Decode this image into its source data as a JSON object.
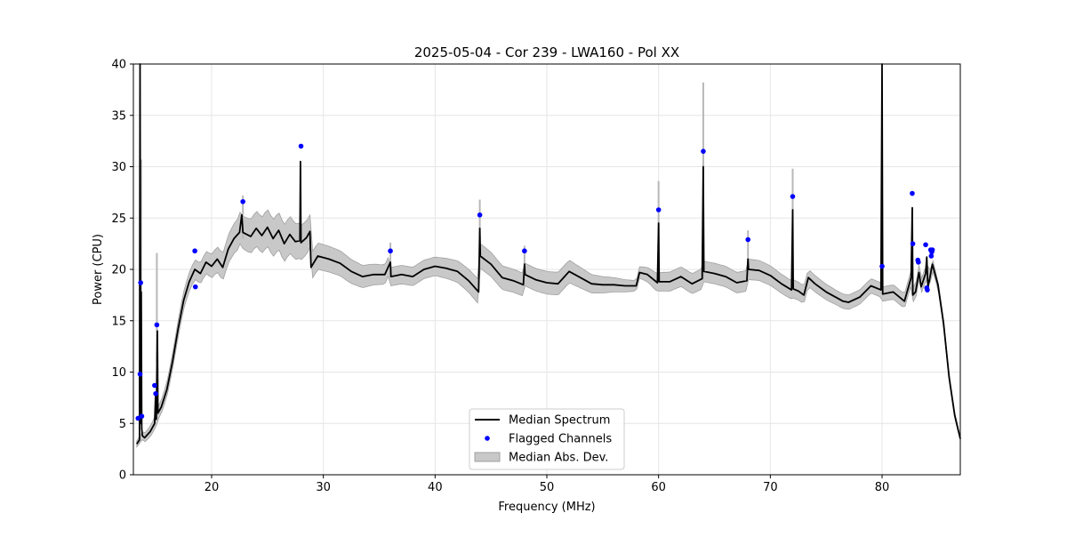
{
  "chart_data": {
    "type": "line",
    "title": "2025-05-04 - Cor 239 - LWA160 - Pol XX",
    "xlabel": "Frequency (MHz)",
    "ylabel": "Power (CPU)",
    "xlim": [
      13,
      87
    ],
    "ylim": [
      0,
      40
    ],
    "xticks": [
      20,
      30,
      40,
      50,
      60,
      70,
      80
    ],
    "yticks": [
      0,
      5,
      10,
      15,
      20,
      25,
      30,
      35,
      40
    ],
    "grid": true,
    "legend_position": "bottom-center",
    "colors": {
      "median": "#000000",
      "flagged": "#0000ff",
      "mad_fill": "#c8c8c8",
      "mad_edge": "#a0a0a0"
    },
    "series": [
      {
        "name": "Median Spectrum",
        "kind": "line",
        "points": [
          [
            13.3,
            3.0
          ],
          [
            13.55,
            3.4
          ],
          [
            13.6,
            40
          ],
          [
            13.65,
            5.0
          ],
          [
            13.7,
            17.8
          ],
          [
            13.75,
            4.5
          ],
          [
            13.8,
            3.8
          ],
          [
            14.0,
            3.6
          ],
          [
            14.5,
            4.2
          ],
          [
            14.9,
            5.0
          ],
          [
            15.0,
            8.0
          ],
          [
            15.05,
            5.4
          ],
          [
            15.15,
            14.0
          ],
          [
            15.2,
            6.0
          ],
          [
            15.5,
            6.6
          ],
          [
            16.0,
            8.3
          ],
          [
            16.5,
            11.0
          ],
          [
            17.0,
            14.2
          ],
          [
            17.5,
            17.0
          ],
          [
            18.0,
            18.8
          ],
          [
            18.5,
            20.0
          ],
          [
            19.0,
            19.6
          ],
          [
            19.5,
            20.7
          ],
          [
            20.0,
            20.3
          ],
          [
            20.5,
            21.0
          ],
          [
            21.0,
            20.2
          ],
          [
            21.5,
            22.0
          ],
          [
            22.0,
            23.0
          ],
          [
            22.5,
            23.6
          ],
          [
            22.7,
            25.3
          ],
          [
            22.8,
            23.6
          ],
          [
            23.5,
            23.2
          ],
          [
            24.0,
            24.0
          ],
          [
            24.5,
            23.3
          ],
          [
            25.0,
            24.1
          ],
          [
            25.5,
            23.0
          ],
          [
            26.0,
            23.8
          ],
          [
            26.5,
            22.5
          ],
          [
            27.0,
            23.4
          ],
          [
            27.5,
            22.7
          ],
          [
            27.9,
            22.8
          ],
          [
            27.95,
            30.5
          ],
          [
            28.0,
            22.6
          ],
          [
            28.5,
            23.1
          ],
          [
            28.8,
            23.7
          ],
          [
            28.9,
            20.2
          ],
          [
            29.5,
            21.3
          ],
          [
            30.5,
            21.0
          ],
          [
            31.5,
            20.6
          ],
          [
            32.5,
            19.8
          ],
          [
            33.5,
            19.3
          ],
          [
            34.5,
            19.5
          ],
          [
            35.5,
            19.5
          ],
          [
            36.0,
            20.7
          ],
          [
            36.05,
            19.3
          ],
          [
            37.0,
            19.5
          ],
          [
            38.0,
            19.3
          ],
          [
            39.0,
            20.0
          ],
          [
            40.0,
            20.3
          ],
          [
            41.0,
            20.1
          ],
          [
            42.0,
            19.8
          ],
          [
            43.0,
            18.9
          ],
          [
            43.9,
            17.8
          ],
          [
            44.0,
            24.0
          ],
          [
            44.05,
            21.3
          ],
          [
            45.0,
            20.5
          ],
          [
            46.0,
            19.2
          ],
          [
            47.0,
            18.9
          ],
          [
            47.9,
            18.5
          ],
          [
            48.0,
            20.5
          ],
          [
            48.05,
            19.5
          ],
          [
            49.0,
            19.0
          ],
          [
            50.0,
            18.7
          ],
          [
            51.0,
            18.6
          ],
          [
            52.0,
            19.8
          ],
          [
            53.0,
            19.2
          ],
          [
            54.0,
            18.6
          ],
          [
            55.0,
            18.5
          ],
          [
            56.0,
            18.5
          ],
          [
            57.0,
            18.4
          ],
          [
            58.0,
            18.4
          ],
          [
            58.3,
            19.7
          ],
          [
            59.0,
            19.5
          ],
          [
            59.9,
            18.7
          ],
          [
            60.0,
            24.5
          ],
          [
            60.05,
            18.8
          ],
          [
            61.0,
            18.8
          ],
          [
            62.0,
            19.3
          ],
          [
            63.0,
            18.6
          ],
          [
            63.9,
            19.1
          ],
          [
            64.0,
            30.0
          ],
          [
            64.05,
            19.8
          ],
          [
            65.0,
            19.6
          ],
          [
            66.0,
            19.3
          ],
          [
            67.0,
            18.7
          ],
          [
            67.9,
            18.9
          ],
          [
            68.0,
            21.0
          ],
          [
            68.05,
            20.0
          ],
          [
            69.0,
            19.9
          ],
          [
            70.0,
            19.4
          ],
          [
            71.0,
            18.6
          ],
          [
            71.9,
            18.0
          ],
          [
            72.0,
            25.8
          ],
          [
            72.05,
            18.1
          ],
          [
            72.5,
            17.9
          ],
          [
            73.0,
            17.5
          ],
          [
            73.4,
            19.2
          ],
          [
            74.0,
            18.6
          ],
          [
            75.0,
            17.8
          ],
          [
            76.0,
            17.2
          ],
          [
            76.5,
            16.9
          ],
          [
            77.0,
            16.8
          ],
          [
            78.0,
            17.3
          ],
          [
            79.0,
            18.4
          ],
          [
            79.9,
            18.0
          ],
          [
            80.0,
            40
          ],
          [
            80.05,
            17.6
          ],
          [
            81.0,
            17.8
          ],
          [
            82.0,
            16.9
          ],
          [
            82.6,
            19.2
          ],
          [
            82.7,
            26.0
          ],
          [
            82.75,
            17.5
          ],
          [
            83.0,
            17.8
          ],
          [
            83.3,
            19.7
          ],
          [
            83.5,
            18.3
          ],
          [
            83.9,
            19.6
          ],
          [
            84.0,
            21.2
          ],
          [
            84.1,
            18.2
          ],
          [
            84.5,
            20.5
          ],
          [
            85.0,
            18.5
          ],
          [
            85.5,
            14.8
          ],
          [
            86.0,
            9.5
          ],
          [
            86.5,
            5.8
          ],
          [
            87.0,
            3.5
          ]
        ]
      },
      {
        "name": "Flagged Channels",
        "kind": "scatter",
        "points": [
          [
            13.42,
            5.5
          ],
          [
            13.6,
            9.8
          ],
          [
            13.65,
            18.7
          ],
          [
            13.75,
            5.7
          ],
          [
            14.9,
            8.7
          ],
          [
            15.0,
            7.9
          ],
          [
            15.1,
            14.6
          ],
          [
            18.5,
            21.8
          ],
          [
            18.55,
            18.3
          ],
          [
            22.8,
            26.6
          ],
          [
            28.0,
            32.0
          ],
          [
            36.0,
            21.8
          ],
          [
            44.0,
            25.3
          ],
          [
            48.0,
            21.8
          ],
          [
            60.0,
            25.8
          ],
          [
            64.0,
            31.5
          ],
          [
            68.0,
            22.9
          ],
          [
            72.0,
            27.1
          ],
          [
            80.0,
            20.3
          ],
          [
            82.7,
            27.4
          ],
          [
            82.75,
            22.5
          ],
          [
            83.2,
            20.9
          ],
          [
            83.25,
            20.7
          ],
          [
            83.9,
            22.4
          ],
          [
            84.0,
            18.2
          ],
          [
            84.05,
            18.0
          ],
          [
            84.35,
            21.9
          ],
          [
            84.4,
            21.3
          ],
          [
            84.45,
            21.7
          ],
          [
            84.5,
            21.9
          ]
        ]
      },
      {
        "name": "Median Abs. Dev.",
        "kind": "band",
        "halfwidth": [
          [
            13.3,
            0.3
          ],
          [
            15.0,
            0.6
          ],
          [
            17.0,
            0.8
          ],
          [
            19.0,
            1.0
          ],
          [
            21.0,
            1.3
          ],
          [
            23.0,
            1.6
          ],
          [
            25.0,
            1.8
          ],
          [
            27.0,
            1.8
          ],
          [
            28.8,
            1.6
          ],
          [
            29.0,
            1.3
          ],
          [
            32.0,
            1.2
          ],
          [
            36.0,
            0.9
          ],
          [
            40.0,
            0.9
          ],
          [
            44.0,
            1.2
          ],
          [
            48.0,
            1.1
          ],
          [
            52.0,
            1.1
          ],
          [
            56.0,
            0.7
          ],
          [
            58.0,
            0.5
          ],
          [
            60.0,
            0.9
          ],
          [
            64.0,
            1.0
          ],
          [
            68.0,
            1.0
          ],
          [
            72.0,
            0.9
          ],
          [
            76.0,
            0.7
          ],
          [
            80.0,
            0.7
          ],
          [
            84.0,
            0.7
          ],
          [
            85.0,
            0.4
          ],
          [
            87.0,
            0.2
          ]
        ]
      }
    ],
    "spike_errors": [
      {
        "x": 15.1,
        "low": 11.0,
        "high": 21.6
      },
      {
        "x": 13.7,
        "low": 5.0,
        "high": 30.7
      },
      {
        "x": 64.0,
        "low": 19.0,
        "high": 38.2
      },
      {
        "x": 60.0,
        "low": 21.0,
        "high": 28.6
      },
      {
        "x": 72.0,
        "low": 22.0,
        "high": 29.8
      },
      {
        "x": 44.0,
        "low": 20.0,
        "high": 26.8
      },
      {
        "x": 68.0,
        "low": 20.0,
        "high": 23.8
      },
      {
        "x": 48.0,
        "low": 19.5,
        "high": 22.3
      },
      {
        "x": 36.0,
        "low": 19.2,
        "high": 22.6
      },
      {
        "x": 22.8,
        "low": 23.0,
        "high": 27.2
      }
    ]
  }
}
